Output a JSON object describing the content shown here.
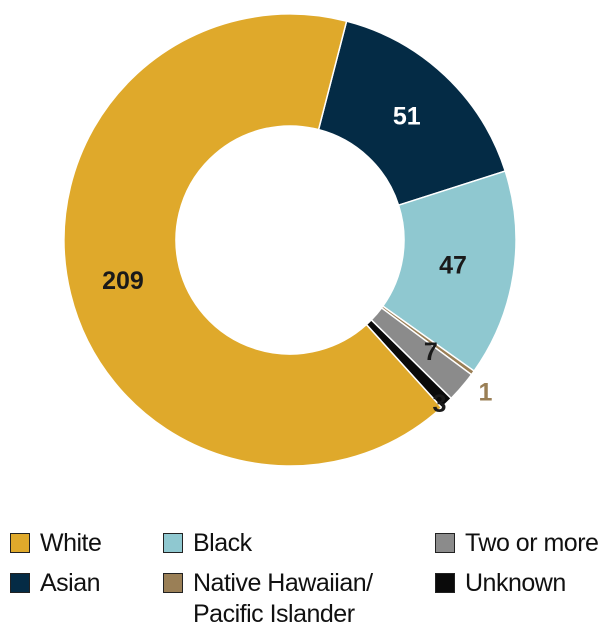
{
  "chart_data": {
    "type": "pie",
    "donut": true,
    "categories": [
      "Asian",
      "Black",
      "Native Hawaiian/ Pacific Islander",
      "Two or more",
      "Unknown",
      "White"
    ],
    "values": [
      51,
      47,
      1,
      7,
      3,
      209
    ],
    "colors": {
      "White": "#DFA92B",
      "Asian": "#042B45",
      "Black": "#8FC8D0",
      "Native Hawaiian/ Pacific Islander": "#9A7F56",
      "Two or more": "#8B8B8B",
      "Unknown": "#0A0A0A"
    },
    "label_colors": {
      "White": "#1a1a1a",
      "Asian": "#ffffff",
      "Black": "#1a1a1a",
      "Native Hawaiian/ Pacific Islander": "#9A7F56",
      "Two or more": "#1a1a1a",
      "Unknown": "#1a1a1a"
    },
    "data_labels": [
      "51",
      "47",
      "1",
      "7",
      "3",
      "209"
    ],
    "legend": {
      "placement": "bottom",
      "items": [
        {
          "name": "White",
          "line1": "White",
          "line2": ""
        },
        {
          "name": "Black",
          "line1": "Black",
          "line2": ""
        },
        {
          "name": "Two or more",
          "line1": "Two or more",
          "line2": ""
        },
        {
          "name": "Asian",
          "line1": "Asian",
          "line2": ""
        },
        {
          "name": "Native Hawaiian/ Pacific Islander",
          "line1": "Native Hawaiian/",
          "line2": "Pacific Islander"
        },
        {
          "name": "Unknown",
          "line1": "Unknown",
          "line2": ""
        }
      ]
    }
  }
}
